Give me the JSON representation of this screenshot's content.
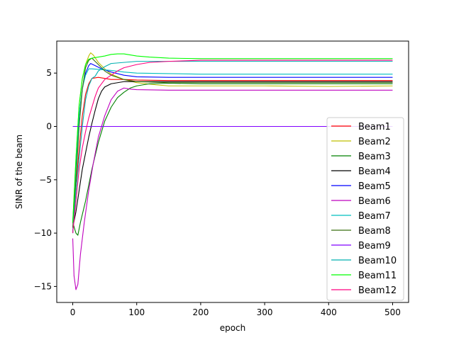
{
  "chart_data": {
    "type": "line",
    "title": "",
    "xlabel": "epoch",
    "ylabel": "SINR of the beam",
    "xlim": [
      -25,
      525
    ],
    "ylim": [
      -16.5,
      8.0
    ],
    "xticks": [
      0,
      100,
      200,
      300,
      400,
      500
    ],
    "yticks": [
      -15,
      -10,
      -5,
      0,
      5
    ],
    "x_tick_labels": [
      "0",
      "100",
      "200",
      "300",
      "400",
      "500"
    ],
    "y_tick_labels": [
      "−15",
      "−10",
      "−5",
      "0",
      "5"
    ],
    "grid": false,
    "legend_position": "lower-right",
    "series": [
      {
        "name": "Beam1",
        "color": "#ff0000",
        "points": [
          [
            0,
            -9.5
          ],
          [
            5,
            -6
          ],
          [
            10,
            -2
          ],
          [
            15,
            1
          ],
          [
            20,
            3
          ],
          [
            25,
            4
          ],
          [
            30,
            4.5
          ],
          [
            40,
            4.6
          ],
          [
            50,
            4.5
          ],
          [
            60,
            4.4
          ],
          [
            80,
            4.4
          ],
          [
            100,
            4.35
          ],
          [
            150,
            4.3
          ],
          [
            200,
            4.3
          ],
          [
            300,
            4.3
          ],
          [
            400,
            4.3
          ],
          [
            500,
            4.3
          ]
        ]
      },
      {
        "name": "Beam2",
        "color": "#bfbf00",
        "points": [
          [
            0,
            -9
          ],
          [
            5,
            -3
          ],
          [
            10,
            2
          ],
          [
            15,
            4.5
          ],
          [
            20,
            5.8
          ],
          [
            25,
            6.6
          ],
          [
            28,
            6.9
          ],
          [
            32,
            6.7
          ],
          [
            40,
            6.0
          ],
          [
            50,
            5.4
          ],
          [
            60,
            4.9
          ],
          [
            80,
            4.4
          ],
          [
            100,
            4.1
          ],
          [
            130,
            3.9
          ],
          [
            150,
            3.8
          ],
          [
            200,
            3.8
          ],
          [
            300,
            3.8
          ],
          [
            400,
            3.75
          ],
          [
            500,
            3.8
          ]
        ]
      },
      {
        "name": "Beam3",
        "color": "#008000",
        "points": [
          [
            0,
            -9
          ],
          [
            5,
            -10
          ],
          [
            8,
            -10.2
          ],
          [
            12,
            -9
          ],
          [
            20,
            -7
          ],
          [
            30,
            -4
          ],
          [
            40,
            -1.5
          ],
          [
            50,
            0.5
          ],
          [
            60,
            1.8
          ],
          [
            70,
            2.7
          ],
          [
            80,
            3.2
          ],
          [
            90,
            3.6
          ],
          [
            100,
            3.8
          ],
          [
            120,
            4.0
          ],
          [
            150,
            4.05
          ],
          [
            200,
            4.0
          ],
          [
            300,
            4.0
          ],
          [
            400,
            4.0
          ],
          [
            500,
            4.0
          ]
        ]
      },
      {
        "name": "Beam4",
        "color": "#000000",
        "points": [
          [
            0,
            -9.5
          ],
          [
            5,
            -8
          ],
          [
            10,
            -6
          ],
          [
            15,
            -4
          ],
          [
            20,
            -2.5
          ],
          [
            25,
            -1
          ],
          [
            30,
            0.3
          ],
          [
            35,
            1.5
          ],
          [
            40,
            2.6
          ],
          [
            45,
            3.3
          ],
          [
            50,
            3.7
          ],
          [
            60,
            4.0
          ],
          [
            70,
            4.1
          ],
          [
            80,
            4.2
          ],
          [
            100,
            4.2
          ],
          [
            150,
            4.2
          ],
          [
            200,
            4.2
          ],
          [
            300,
            4.2
          ],
          [
            400,
            4.2
          ],
          [
            500,
            4.2
          ]
        ]
      },
      {
        "name": "Beam5",
        "color": "#0000ff",
        "points": [
          [
            0,
            -10
          ],
          [
            5,
            -4
          ],
          [
            10,
            1
          ],
          [
            15,
            3.5
          ],
          [
            20,
            5
          ],
          [
            25,
            5.7
          ],
          [
            28,
            5.9
          ],
          [
            35,
            5.7
          ],
          [
            45,
            5.4
          ],
          [
            60,
            5.1
          ],
          [
            80,
            4.8
          ],
          [
            100,
            4.65
          ],
          [
            150,
            4.6
          ],
          [
            200,
            4.6
          ],
          [
            300,
            4.6
          ],
          [
            400,
            4.6
          ],
          [
            500,
            4.6
          ]
        ]
      },
      {
        "name": "Beam6",
        "color": "#bf00bf",
        "points": [
          [
            0,
            -10.5
          ],
          [
            2,
            -14
          ],
          [
            5,
            -15.3
          ],
          [
            8,
            -14.8
          ],
          [
            12,
            -12
          ],
          [
            18,
            -9
          ],
          [
            25,
            -6
          ],
          [
            32,
            -3.5
          ],
          [
            40,
            -1
          ],
          [
            50,
            1
          ],
          [
            60,
            2.5
          ],
          [
            70,
            3.3
          ],
          [
            80,
            3.6
          ],
          [
            90,
            3.5
          ],
          [
            100,
            3.45
          ],
          [
            150,
            3.4
          ],
          [
            200,
            3.4
          ],
          [
            300,
            3.4
          ],
          [
            400,
            3.4
          ],
          [
            500,
            3.4
          ]
        ]
      },
      {
        "name": "Beam7",
        "color": "#00bfbf",
        "points": [
          [
            0,
            -9
          ],
          [
            5,
            -4
          ],
          [
            10,
            1
          ],
          [
            15,
            3.6
          ],
          [
            20,
            4.8
          ],
          [
            25,
            5.4
          ],
          [
            30,
            5.4
          ],
          [
            40,
            5.35
          ],
          [
            50,
            5.3
          ],
          [
            60,
            5.25
          ],
          [
            80,
            5.1
          ],
          [
            100,
            5.0
          ],
          [
            150,
            4.95
          ],
          [
            200,
            4.9
          ],
          [
            300,
            4.9
          ],
          [
            400,
            4.9
          ],
          [
            500,
            4.9
          ]
        ]
      },
      {
        "name": "Beam8",
        "color": "#3a6f10",
        "points": [
          [
            0,
            -9.5
          ],
          [
            5,
            -5
          ],
          [
            10,
            0
          ],
          [
            15,
            3.5
          ],
          [
            20,
            5.5
          ],
          [
            25,
            6.2
          ],
          [
            30,
            6.4
          ],
          [
            35,
            6.1
          ],
          [
            40,
            5.8
          ],
          [
            50,
            5.2
          ],
          [
            60,
            4.8
          ],
          [
            80,
            4.4
          ],
          [
            100,
            4.2
          ],
          [
            150,
            4.1
          ],
          [
            200,
            4.1
          ],
          [
            300,
            4.1
          ],
          [
            400,
            4.1
          ],
          [
            500,
            4.1
          ]
        ]
      },
      {
        "name": "Beam9",
        "color": "#8000ff",
        "points": [
          [
            0,
            0
          ],
          [
            100,
            0
          ],
          [
            200,
            0
          ],
          [
            300,
            0
          ],
          [
            400,
            0
          ],
          [
            500,
            0
          ]
        ]
      },
      {
        "name": "Beam10",
        "color": "#00b0b0",
        "points": [
          [
            0,
            -10
          ],
          [
            5,
            -6
          ],
          [
            10,
            -3
          ],
          [
            15,
            0
          ],
          [
            20,
            2.5
          ],
          [
            25,
            3.8
          ],
          [
            30,
            4.5
          ],
          [
            35,
            4.7
          ],
          [
            40,
            5.2
          ],
          [
            50,
            5.6
          ],
          [
            60,
            5.9
          ],
          [
            80,
            6.0
          ],
          [
            100,
            6.1
          ],
          [
            150,
            6.1
          ],
          [
            200,
            6.1
          ],
          [
            300,
            6.1
          ],
          [
            400,
            6.1
          ],
          [
            500,
            6.1
          ]
        ]
      },
      {
        "name": "Beam11",
        "color": "#00ff00",
        "points": [
          [
            0,
            -9
          ],
          [
            5,
            -3
          ],
          [
            10,
            2
          ],
          [
            15,
            4.5
          ],
          [
            20,
            5.8
          ],
          [
            25,
            6.3
          ],
          [
            30,
            6.4
          ],
          [
            40,
            6.5
          ],
          [
            50,
            6.6
          ],
          [
            60,
            6.75
          ],
          [
            70,
            6.8
          ],
          [
            80,
            6.8
          ],
          [
            100,
            6.6
          ],
          [
            120,
            6.5
          ],
          [
            150,
            6.4
          ],
          [
            200,
            6.35
          ],
          [
            300,
            6.35
          ],
          [
            400,
            6.35
          ],
          [
            500,
            6.35
          ]
        ]
      },
      {
        "name": "Beam12",
        "color": "#ff0080",
        "points": [
          [
            0,
            -10
          ],
          [
            5,
            -7
          ],
          [
            10,
            -4
          ],
          [
            15,
            -2
          ],
          [
            20,
            -0.5
          ],
          [
            25,
            0.8
          ],
          [
            30,
            1.8
          ],
          [
            35,
            2.8
          ],
          [
            40,
            3.6
          ],
          [
            50,
            4.4
          ],
          [
            60,
            4.8
          ],
          [
            70,
            5.2
          ],
          [
            80,
            5.5
          ],
          [
            100,
            5.8
          ],
          [
            120,
            6.0
          ],
          [
            150,
            6.1
          ],
          [
            200,
            6.2
          ],
          [
            300,
            6.2
          ],
          [
            400,
            6.2
          ],
          [
            500,
            6.2
          ]
        ]
      }
    ]
  }
}
